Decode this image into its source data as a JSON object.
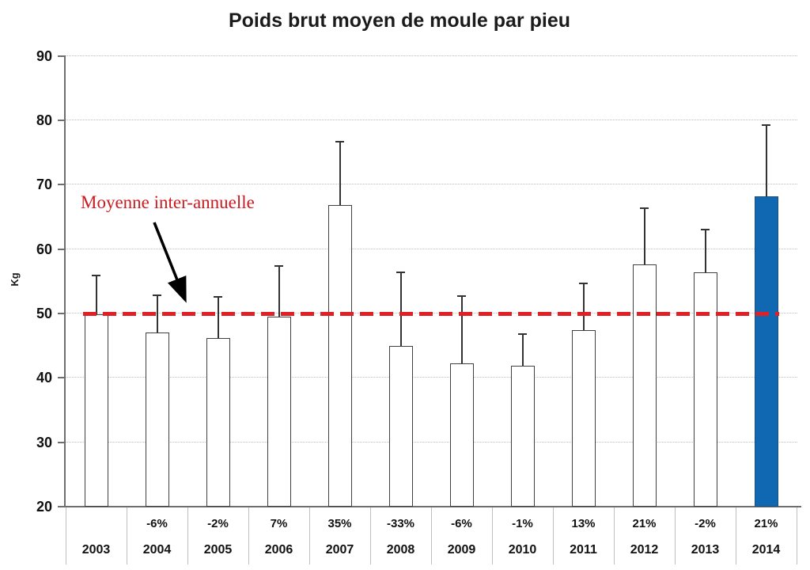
{
  "chart_data": {
    "type": "bar",
    "title": "Poids brut moyen de moule par pieu",
    "ylabel": "Kg",
    "ylim": [
      20,
      90
    ],
    "ytick_step": 10,
    "grid": "dotted horizontal",
    "categories": [
      "2003",
      "2004",
      "2005",
      "2006",
      "2007",
      "2008",
      "2009",
      "2010",
      "2011",
      "2012",
      "2013",
      "2014"
    ],
    "values": [
      49.9,
      47.0,
      46.2,
      49.5,
      66.9,
      44.9,
      42.3,
      41.9,
      47.4,
      57.6,
      56.4,
      68.2
    ],
    "error_top": [
      55.9,
      52.8,
      52.6,
      57.4,
      76.7,
      56.4,
      52.7,
      46.8,
      54.7,
      66.3,
      63.0,
      79.3
    ],
    "pct_change": [
      "",
      "-6%",
      "-2%",
      "7%",
      "35%",
      "-33%",
      "-6%",
      "-1%",
      "13%",
      "21%",
      "-2%",
      "21%"
    ],
    "highlight_index": 11,
    "mean_line": {
      "value": 50,
      "label": "Moyenne inter-annuelle"
    },
    "colors": {
      "bar_fill": "#ffffff",
      "bar_stroke": "#404040",
      "highlight_fill": "#1068b2",
      "highlight_stroke": "#1f4e79",
      "mean_line": "#e02024",
      "annotation_text": "#cb1b20",
      "grid": "#bdbdbd",
      "axis": "#6e6e6e",
      "label_text": "#111111"
    }
  }
}
